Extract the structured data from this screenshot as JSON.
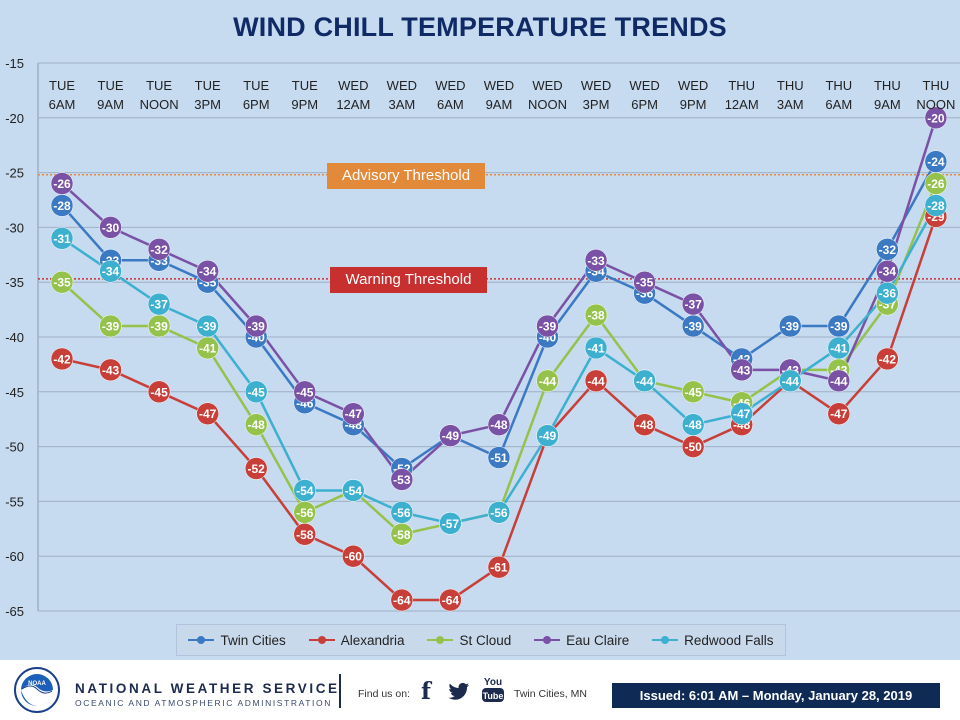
{
  "chart_data": {
    "type": "line",
    "title": "WIND CHILL TEMPERATURE TRENDS",
    "categories": [
      [
        "TUE",
        "6AM"
      ],
      [
        "TUE",
        "9AM"
      ],
      [
        "TUE",
        "NOON"
      ],
      [
        "TUE",
        "3PM"
      ],
      [
        "TUE",
        "6PM"
      ],
      [
        "TUE",
        "9PM"
      ],
      [
        "WED",
        "12AM"
      ],
      [
        "WED",
        "3AM"
      ],
      [
        "WED",
        "6AM"
      ],
      [
        "WED",
        "9AM"
      ],
      [
        "WED",
        "NOON"
      ],
      [
        "WED",
        "3PM"
      ],
      [
        "WED",
        "6PM"
      ],
      [
        "WED",
        "9PM"
      ],
      [
        "THU",
        "12AM"
      ],
      [
        "THU",
        "3AM"
      ],
      [
        "THU",
        "6AM"
      ],
      [
        "THU",
        "9AM"
      ],
      [
        "THU",
        "NOON"
      ]
    ],
    "ylim": [
      -65,
      -15
    ],
    "yticks": [
      -15,
      -20,
      -25,
      -30,
      -35,
      -40,
      -45,
      -50,
      -55,
      -60,
      -65
    ],
    "series": [
      {
        "name": "Twin Cities",
        "color": "#3b79c3",
        "values": [
          -28,
          -33,
          -33,
          -35,
          -40,
          -46,
          -48,
          -52,
          -49,
          -51,
          -40,
          -34,
          -36,
          -39,
          -42,
          -39,
          -39,
          -32,
          -24
        ]
      },
      {
        "name": "Alexandria",
        "color": "#c73f38",
        "values": [
          -42,
          -43,
          -45,
          -47,
          -52,
          -58,
          -60,
          -64,
          -64,
          -61,
          -49,
          -44,
          -48,
          -50,
          -48,
          -44,
          -47,
          -42,
          -29
        ]
      },
      {
        "name": "St Cloud",
        "color": "#94c24a",
        "values": [
          -35,
          -39,
          -39,
          -41,
          -48,
          -56,
          -54,
          -58,
          -57,
          -56,
          -44,
          -38,
          -44,
          -45,
          -46,
          -43,
          -43,
          -37,
          -26
        ]
      },
      {
        "name": "Eau Claire",
        "color": "#7a52a5",
        "values": [
          -26,
          -30,
          -32,
          -34,
          -39,
          -45,
          -47,
          -53,
          -49,
          -48,
          -39,
          -33,
          -35,
          -37,
          -43,
          -43,
          -44,
          -34,
          -20
        ]
      },
      {
        "name": "Redwood Falls",
        "color": "#3db0cf",
        "values": [
          -31,
          -34,
          -37,
          -39,
          -45,
          -54,
          -54,
          -56,
          -57,
          -56,
          -49,
          -41,
          -44,
          -48,
          -47,
          -44,
          -41,
          -36,
          -28
        ]
      }
    ],
    "thresholds": [
      {
        "label": "Advisory Threshold",
        "value": -25.2,
        "color": "#e2893a"
      },
      {
        "label": "Warning Threshold",
        "value": -34.7,
        "color": "#c8302f"
      }
    ],
    "legend_position": "bottom"
  },
  "footer": {
    "org_name": "NATIONAL WEATHER SERVICE",
    "org_sub": "OCEANIC AND ATMOSPHERIC ADMINISTRATION",
    "logo_text": "NOAA",
    "find_us": "Find us on:",
    "facebook_glyph": "f",
    "youtube_text": "You",
    "youtube_text2": "Tube",
    "location": "Twin Cities, MN",
    "issued": "Issued: 6:01 AM – Monday, January 28, 2019"
  }
}
